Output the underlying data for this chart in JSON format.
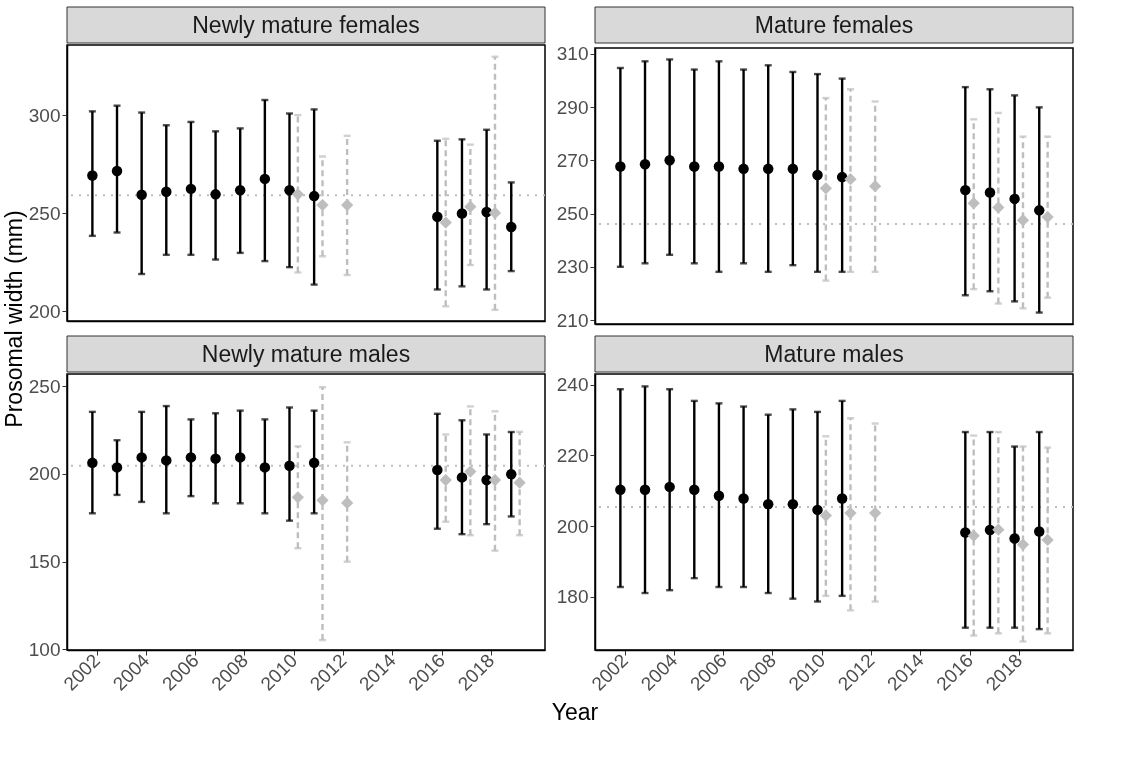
{
  "chart_data": [
    {
      "type": "scatter",
      "title": "Newly mature females",
      "ylabel": "Prosomal width (mm)",
      "xlim": [
        2000.8,
        2020.2
      ],
      "ylim": [
        195,
        336
      ],
      "yticks": [
        200,
        250,
        300
      ],
      "tick_labels": "y",
      "grid": false,
      "ref_lines": [
        {
          "axis": "y",
          "value": 259.2,
          "color": "#bebebe",
          "line_style": "dotted"
        }
      ],
      "series": [
        {
          "color": "#000000",
          "marker": "circle",
          "line_style": "solid",
          "x": [
            2001.83,
            2002.83,
            2003.83,
            2004.83,
            2005.83,
            2006.83,
            2007.83,
            2008.83,
            2009.83,
            2010.83,
            2015.83,
            2016.83,
            2017.83,
            2018.83
          ],
          "values": [
            269.3,
            271.6,
            259.5,
            261,
            262.5,
            259.7,
            261.8,
            267.6,
            261.8,
            258.8,
            248.3,
            249.9,
            250.7,
            243
          ],
          "errors": [
            [
              238.5,
              302.1
            ],
            [
              240.2,
              305
            ],
            [
              219,
              301.5
            ],
            [
              228.8,
              295
            ],
            [
              228.8,
              296.7
            ],
            [
              226.4,
              291.9
            ],
            [
              229.8,
              293.4
            ],
            [
              225.6,
              307.9
            ],
            [
              222.5,
              301
            ],
            [
              213.6,
              303.1
            ],
            [
              211.1,
              287.1
            ],
            [
              212.7,
              287.8
            ],
            [
              211.1,
              292.7
            ],
            [
              220.5,
              265.8
            ]
          ]
        },
        {
          "color": "#bebebe",
          "marker": "diamond",
          "line_style": "dashed",
          "x": [
            2010.17,
            2011.17,
            2012.17,
            2016.17,
            2017.17,
            2018.17
          ],
          "values": [
            259.7,
            254.2,
            254.2,
            245.3,
            253.4,
            250.2
          ],
          "errors": [
            [
              219.8,
              300.2
            ],
            [
              228.1,
              279
            ],
            [
              218.5,
              289.6
            ],
            [
              202.5,
              288.1
            ],
            [
              223.6,
              285.1
            ],
            [
              200.7,
              330
            ]
          ]
        }
      ]
    },
    {
      "type": "scatter",
      "title": "Mature females",
      "xlim": [
        2000.8,
        2020.2
      ],
      "ylim": [
        208.5,
        312.2
      ],
      "yticks": [
        210,
        230,
        250,
        270,
        290,
        310
      ],
      "tick_labels": "y",
      "grid": false,
      "ref_lines": [
        {
          "axis": "y",
          "value": 246.1,
          "color": "#bebebe",
          "line_style": "dotted"
        }
      ],
      "series": [
        {
          "color": "#000000",
          "marker": "circle",
          "line_style": "solid",
          "x": [
            2001.83,
            2002.83,
            2003.83,
            2004.83,
            2005.83,
            2006.83,
            2007.83,
            2008.83,
            2009.83,
            2010.83,
            2015.83,
            2016.83,
            2017.83,
            2018.83
          ],
          "values": [
            267.7,
            268.5,
            270,
            267.7,
            267.7,
            266.8,
            266.8,
            266.8,
            264.5,
            263.7,
            258.8,
            257.9,
            255.5,
            251.2
          ],
          "errors": [
            [
              230,
              304.7
            ],
            [
              231.3,
              307.2
            ],
            [
              234.5,
              307.9
            ],
            [
              231.3,
              304.1
            ],
            [
              228.1,
              307.2
            ],
            [
              231.3,
              304.1
            ],
            [
              228.1,
              305.7
            ],
            [
              230.6,
              303.2
            ],
            [
              228.1,
              302.4
            ],
            [
              228.1,
              300.7
            ],
            [
              219.3,
              297.5
            ],
            [
              220.8,
              296.7
            ],
            [
              217,
              294.4
            ],
            [
              212.8,
              289.9
            ]
          ]
        },
        {
          "color": "#bebebe",
          "marker": "diamond",
          "line_style": "dashed",
          "x": [
            2010.17,
            2011.17,
            2012.17,
            2016.17,
            2017.17,
            2018.17,
            2019.17
          ],
          "values": [
            259.5,
            262.9,
            260.3,
            253.9,
            252.3,
            247.5,
            248.7
          ],
          "errors": [
            [
              224.8,
              293.4
            ],
            [
              228.1,
              296.7
            ],
            [
              228.1,
              292.1
            ],
            [
              221.6,
              285.4
            ],
            [
              216.2,
              287.8
            ],
            [
              214.4,
              278.9
            ],
            [
              218.4,
              278.9
            ]
          ]
        }
      ]
    },
    {
      "type": "scatter",
      "title": "Newly mature males",
      "xlabel": "Year",
      "xlim": [
        2000.8,
        2020.2
      ],
      "xticks": [
        2002,
        2004,
        2006,
        2008,
        2010,
        2012,
        2014,
        2016,
        2018
      ],
      "ylim": [
        99.5,
        257
      ],
      "yticks": [
        100,
        150,
        200,
        250
      ],
      "grid": false,
      "ref_lines": [
        {
          "axis": "y",
          "value": 204.6,
          "color": "#bebebe",
          "line_style": "dotted"
        }
      ],
      "series": [
        {
          "color": "#000000",
          "marker": "circle",
          "line_style": "solid",
          "x": [
            2001.83,
            2002.83,
            2003.83,
            2004.83,
            2005.83,
            2006.83,
            2007.83,
            2008.83,
            2009.83,
            2010.83,
            2015.83,
            2016.83,
            2017.83,
            2018.83
          ],
          "values": [
            206.3,
            203.7,
            209.4,
            207.7,
            209.4,
            208.7,
            209.4,
            203.7,
            204.6,
            206.3,
            202.2,
            198,
            196.5,
            199.8
          ],
          "errors": [
            [
              177.5,
              235.4
            ],
            [
              188,
              219.2
            ],
            [
              184,
              235.4
            ],
            [
              177.5,
              238.7
            ],
            [
              187.3,
              231.1
            ],
            [
              183.2,
              234.6
            ],
            [
              183.2,
              236.1
            ],
            [
              177.5,
              231.1
            ],
            [
              173.3,
              237.9
            ],
            [
              177.5,
              236.1
            ],
            [
              168.7,
              234.3
            ],
            [
              165.6,
              230.6
            ],
            [
              171.3,
              222.5
            ],
            [
              175.7,
              223.9
            ]
          ]
        },
        {
          "color": "#bebebe",
          "marker": "diamond",
          "line_style": "dashed",
          "x": [
            2010.17,
            2011.17,
            2012.17,
            2016.17,
            2017.17,
            2018.17,
            2019.17
          ],
          "values": [
            186.6,
            184.9,
            183.4,
            196.5,
            201.3,
            196.5,
            195
          ],
          "errors": [
            [
              157.6,
              215.7
            ],
            [
              105.2,
              249.4
            ],
            [
              149.9,
              218
            ],
            [
              172.7,
              222.5
            ],
            [
              165,
              238.5
            ],
            [
              156.2,
              235.7
            ],
            [
              165,
              224
            ]
          ]
        }
      ]
    },
    {
      "type": "scatter",
      "title": "Mature males",
      "xlim": [
        2000.8,
        2020.2
      ],
      "xticks": [
        2002,
        2004,
        2006,
        2008,
        2010,
        2012,
        2014,
        2016,
        2018
      ],
      "ylim": [
        165,
        243
      ],
      "yticks": [
        180,
        200,
        220,
        240
      ],
      "grid": false,
      "ref_lines": [
        {
          "axis": "y",
          "value": 205.4,
          "color": "#bebebe",
          "line_style": "dotted"
        }
      ],
      "series": [
        {
          "color": "#000000",
          "marker": "circle",
          "line_style": "solid",
          "x": [
            2001.83,
            2002.83,
            2003.83,
            2004.83,
            2005.83,
            2006.83,
            2007.83,
            2008.83,
            2009.83,
            2010.83,
            2015.83,
            2016.83,
            2017.83,
            2018.83
          ],
          "values": [
            210.3,
            210.3,
            211.1,
            210.3,
            208.6,
            207.8,
            206.2,
            206.2,
            204.6,
            207.8,
            198.2,
            198.9,
            196.5,
            198.5
          ],
          "errors": [
            [
              182.8,
              238.7
            ],
            [
              181.1,
              239.5
            ],
            [
              181.9,
              238.7
            ],
            [
              185.3,
              235.4
            ],
            [
              182.8,
              234.7
            ],
            [
              182.8,
              233.8
            ],
            [
              181.1,
              231.5
            ],
            [
              179.5,
              233
            ],
            [
              178.7,
              232.3
            ],
            [
              180.3,
              235.4
            ],
            [
              171.3,
              226.6
            ],
            [
              171.3,
              226.6
            ],
            [
              171.3,
              222.5
            ],
            [
              170.9,
              226.6
            ]
          ]
        },
        {
          "color": "#bebebe",
          "marker": "diamond",
          "line_style": "dashed",
          "x": [
            2010.17,
            2011.17,
            2012.17,
            2016.17,
            2017.17,
            2018.17,
            2019.17
          ],
          "values": [
            203,
            203.7,
            203.7,
            197.3,
            199,
            194.8,
            196.1
          ],
          "errors": [
            [
              180.3,
              225.4
            ],
            [
              176.2,
              230.5
            ],
            [
              178.7,
              229
            ],
            [
              169.1,
              225.6
            ],
            [
              169.7,
              226.6
            ],
            [
              167.4,
              222.5
            ],
            [
              169.7,
              222.2
            ]
          ]
        }
      ]
    }
  ]
}
